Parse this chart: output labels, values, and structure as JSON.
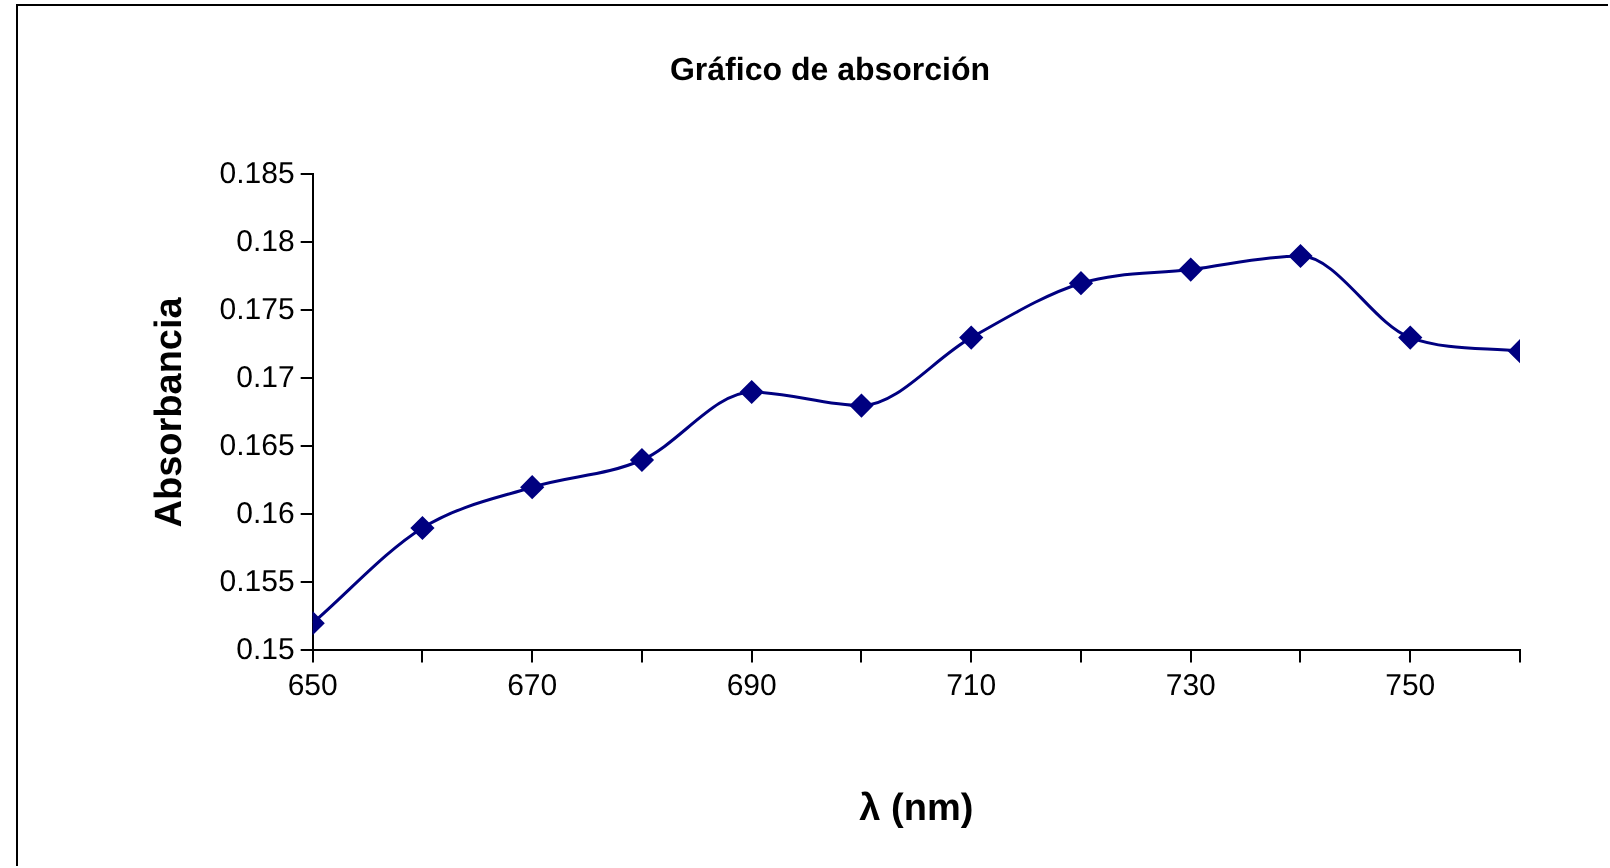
{
  "chart_data": {
    "type": "line",
    "title": "Gráfico de absorción",
    "xlabel": "λ (nm)",
    "ylabel": "Absorbancia",
    "x": [
      650,
      660,
      670,
      680,
      690,
      700,
      710,
      720,
      730,
      740,
      750,
      760
    ],
    "series": [
      {
        "color": "#000080",
        "values": [
          0.152,
          0.159,
          0.162,
          0.164,
          0.169,
          0.168,
          0.173,
          0.177,
          0.178,
          0.179,
          0.173,
          0.172
        ]
      }
    ],
    "xlim": [
      650,
      760
    ],
    "xticks": [
      650,
      {
        "value": 660,
        "label": null
      },
      670,
      {
        "value": 680,
        "label": null
      },
      690,
      {
        "value": 700,
        "label": null
      },
      710,
      {
        "value": 720,
        "label": null
      },
      730,
      {
        "value": 740,
        "label": null
      },
      750,
      {
        "value": 760,
        "label": null
      }
    ],
    "ylim": [
      0.15,
      0.185
    ],
    "yticks": [
      0.15,
      0.155,
      0.16,
      0.165,
      0.17,
      0.175,
      0.18,
      0.185
    ],
    "marker": "diamond",
    "line_style": "solid"
  }
}
